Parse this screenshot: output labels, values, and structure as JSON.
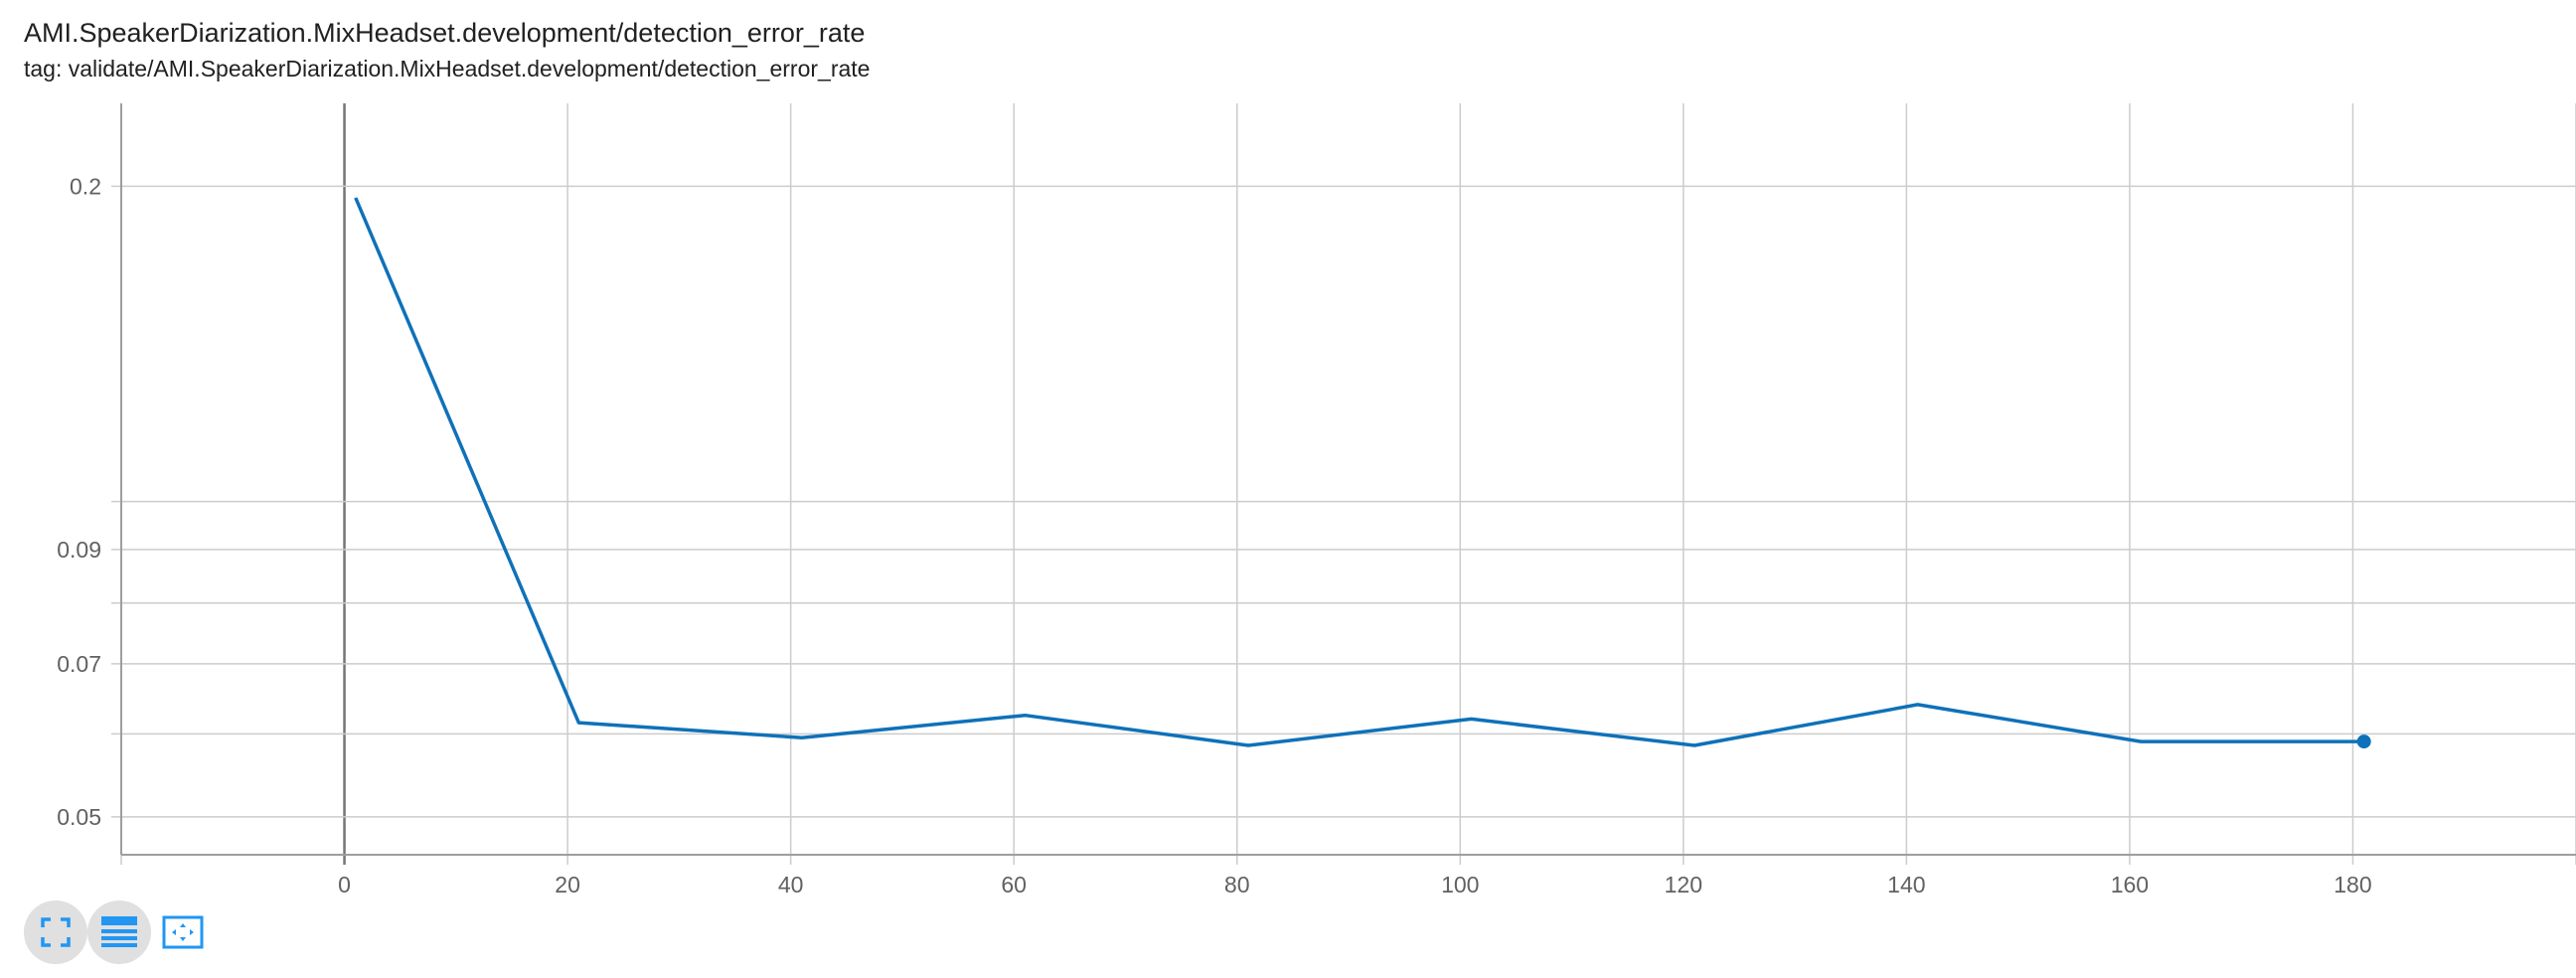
{
  "header": {
    "title": "AMI.SpeakerDiarization.MixHeadset.development/detection_error_rate",
    "tag_line": "tag: validate/AMI.SpeakerDiarization.MixHeadset.development/detection_error_rate"
  },
  "colors": {
    "series": "#0f71b9",
    "grid": "#cccccc",
    "axis": "#9e9e9e",
    "zero_line": "#757575",
    "icon_blue": "#2196f3",
    "button_shade": "#e0e0e0"
  },
  "toolbar": {
    "icons": [
      "fullscreen-icon",
      "list-icon",
      "fit-domain-icon"
    ]
  },
  "chart_data": {
    "type": "line",
    "title": "AMI.SpeakerDiarization.MixHeadset.development/detection_error_rate",
    "xlabel": "",
    "ylabel": "",
    "y_scale": "log",
    "xlim": [
      -20,
      200
    ],
    "ylim": [
      0.046,
      0.24
    ],
    "x_ticks": [
      0,
      20,
      40,
      60,
      80,
      100,
      120,
      140,
      160,
      180
    ],
    "x_tick_labels": [
      "0",
      "20",
      "40",
      "60",
      "80",
      "100",
      "120",
      "140",
      "160",
      "180"
    ],
    "x_extra_grid": [
      -20,
      200
    ],
    "y_ticks": [
      0.2,
      0.09,
      0.07,
      0.05
    ],
    "y_tick_labels": [
      "0.2",
      "0.09",
      "0.07",
      "0.05"
    ],
    "y_extra_grid": [
      0.1,
      0.08,
      0.06
    ],
    "grid": true,
    "legend": "none",
    "series": [
      {
        "x": [
          1,
          21,
          41,
          61,
          81,
          101,
          121,
          141,
          161,
          181
        ],
        "y": [
          0.195,
          0.0615,
          0.0595,
          0.0625,
          0.0585,
          0.062,
          0.0585,
          0.064,
          0.059,
          0.059
        ]
      }
    ]
  }
}
